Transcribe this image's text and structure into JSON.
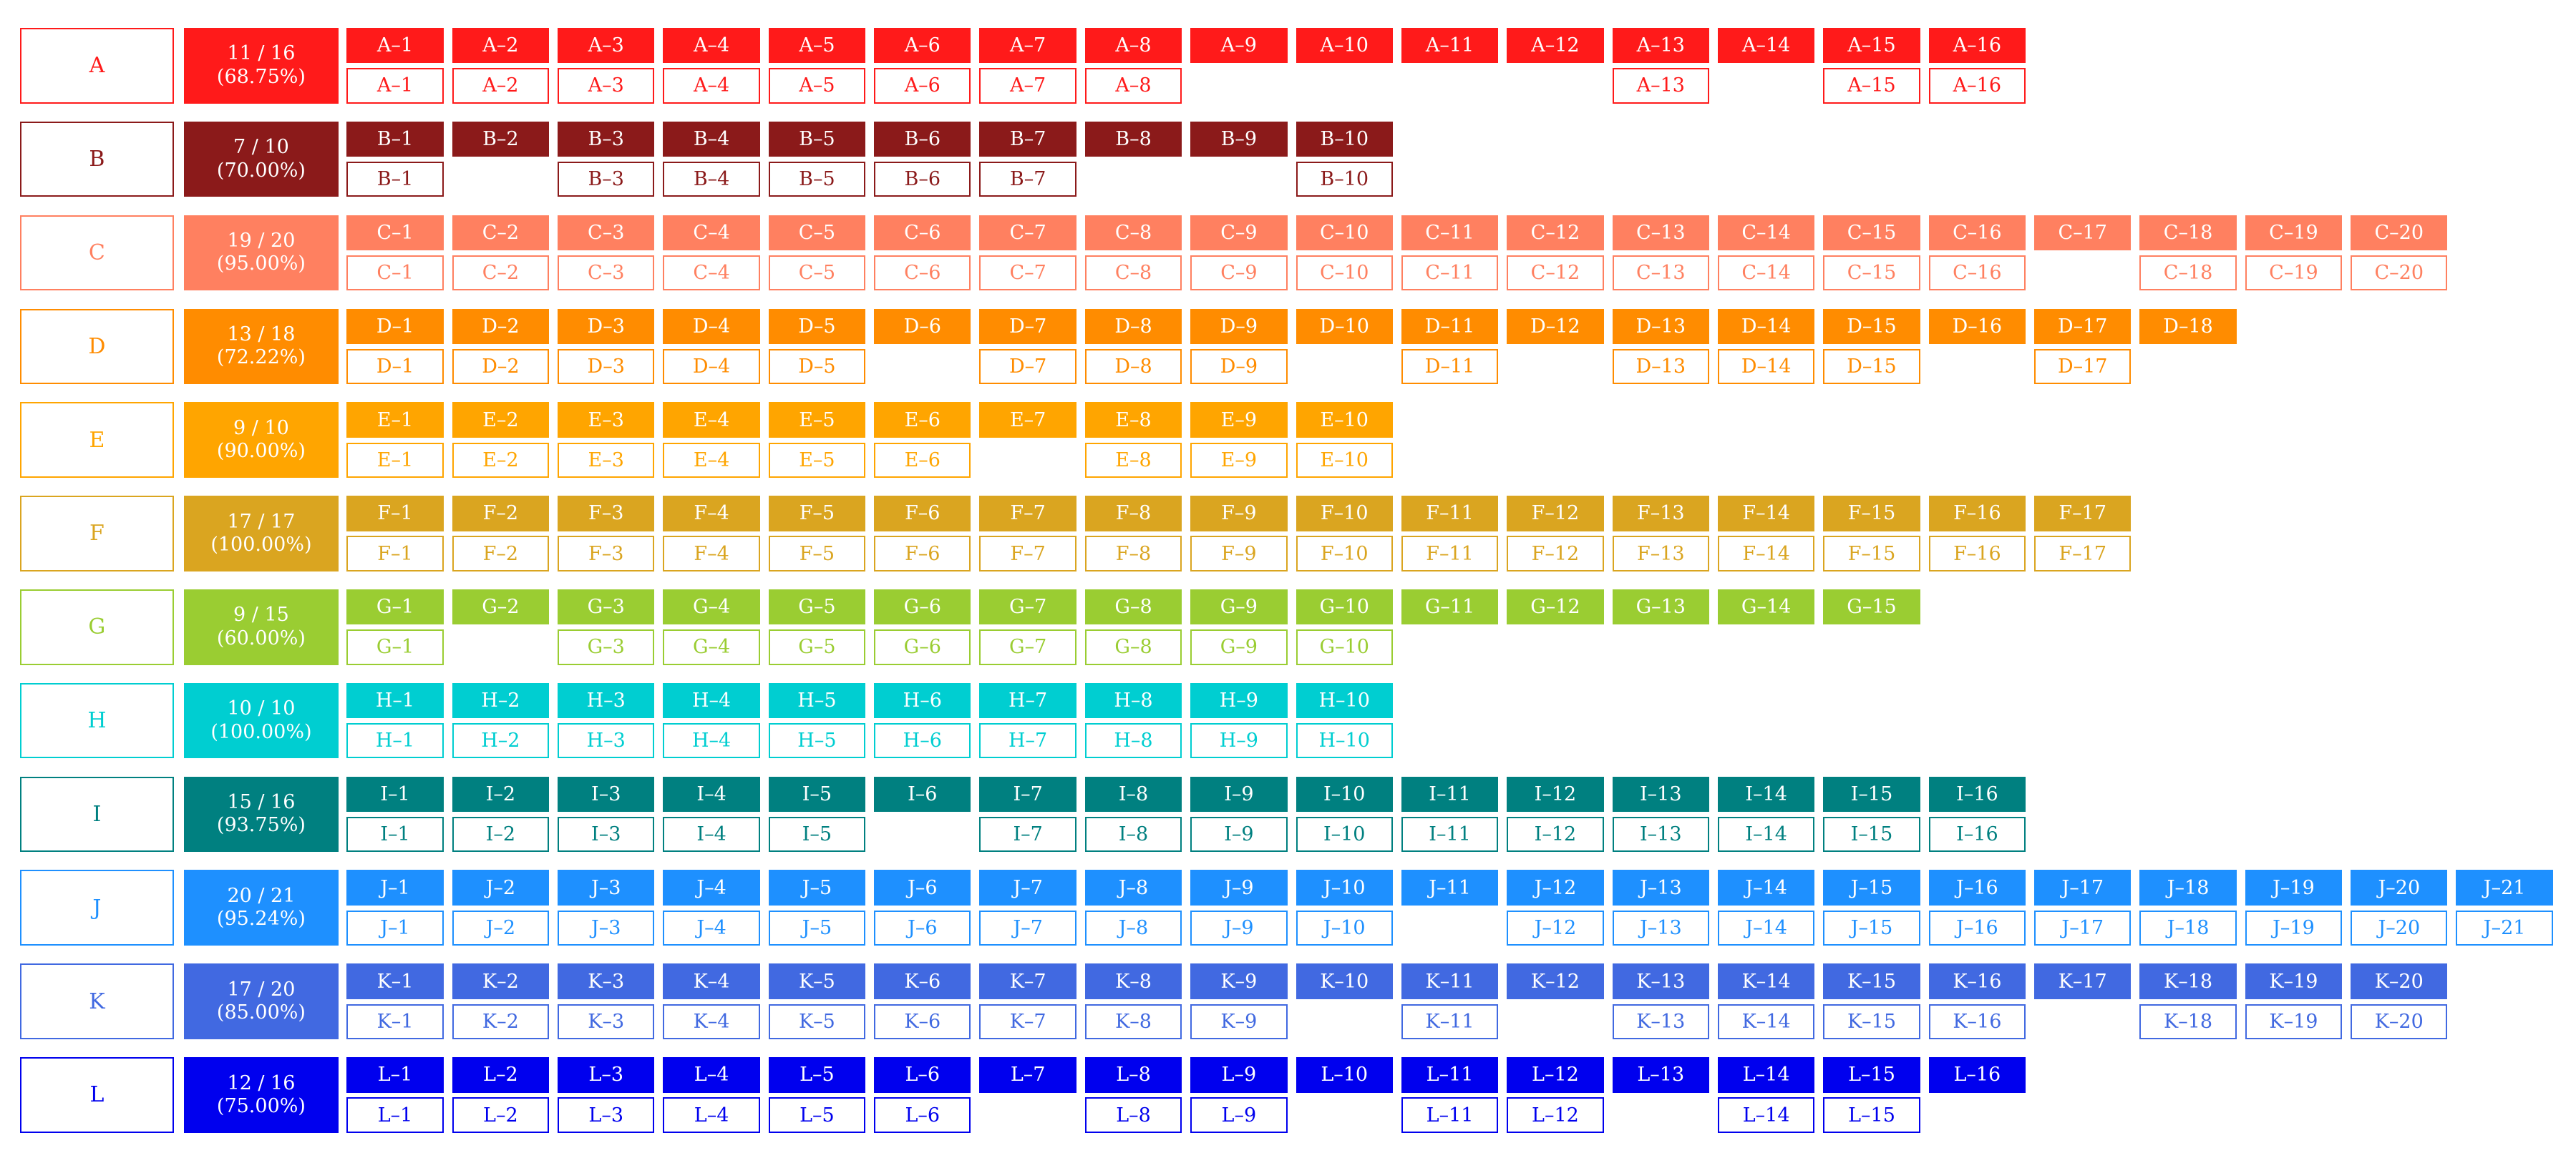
{
  "rows": [
    {
      "label": "A",
      "color": "#ff1a1a",
      "ratio": "11 / 16",
      "percent": "(68.75%)",
      "items": [
        "A–1",
        "A–2",
        "A–3",
        "A–4",
        "A–5",
        "A–6",
        "A–7",
        "A–8",
        "A–9",
        "A–10",
        "A–11",
        "A–12",
        "A–13",
        "A–14",
        "A–15",
        "A–16"
      ],
      "completed": [
        "A–1",
        "A–2",
        "A–3",
        "A–4",
        "A–5",
        "A–6",
        "A–7",
        "A–8",
        "A–13",
        "A–15",
        "A–16"
      ]
    },
    {
      "label": "B",
      "color": "#8b1a1a",
      "ratio": "7 / 10",
      "percent": "(70.00%)",
      "items": [
        "B–1",
        "B–2",
        "B–3",
        "B–4",
        "B–5",
        "B–6",
        "B–7",
        "B–8",
        "B–9",
        "B–10"
      ],
      "completed": [
        "B–1",
        "B–3",
        "B–4",
        "B–5",
        "B–6",
        "B–7",
        "B–10"
      ]
    },
    {
      "label": "C",
      "color": "#ff8060",
      "ratio": "19 / 20",
      "percent": "(95.00%)",
      "items": [
        "C–1",
        "C–2",
        "C–3",
        "C–4",
        "C–5",
        "C–6",
        "C–7",
        "C–8",
        "C–9",
        "C–10",
        "C–11",
        "C–12",
        "C–13",
        "C–14",
        "C–15",
        "C–16",
        "C–17",
        "C–18",
        "C–19",
        "C–20"
      ],
      "completed": [
        "C–1",
        "C–2",
        "C–3",
        "C–4",
        "C–5",
        "C–6",
        "C–7",
        "C–8",
        "C–9",
        "C–10",
        "C–11",
        "C–12",
        "C–13",
        "C–14",
        "C–15",
        "C–16",
        "C–18",
        "C–19",
        "C–20"
      ]
    },
    {
      "label": "D",
      "color": "#ff8c00",
      "ratio": "13 / 18",
      "percent": "(72.22%)",
      "items": [
        "D–1",
        "D–2",
        "D–3",
        "D–4",
        "D–5",
        "D–6",
        "D–7",
        "D–8",
        "D–9",
        "D–10",
        "D–11",
        "D–12",
        "D–13",
        "D–14",
        "D–15",
        "D–16",
        "D–17",
        "D–18"
      ],
      "completed": [
        "D–1",
        "D–2",
        "D–3",
        "D–4",
        "D–5",
        "D–7",
        "D–8",
        "D–9",
        "D–11",
        "D–13",
        "D–14",
        "D–15",
        "D–17"
      ]
    },
    {
      "label": "E",
      "color": "#ffa500",
      "ratio": "9 / 10",
      "percent": "(90.00%)",
      "items": [
        "E–1",
        "E–2",
        "E–3",
        "E–4",
        "E–5",
        "E–6",
        "E–7",
        "E–8",
        "E–9",
        "E–10"
      ],
      "completed": [
        "E–1",
        "E–2",
        "E–3",
        "E–4",
        "E–5",
        "E–6",
        "E–8",
        "E–9",
        "E–10"
      ]
    },
    {
      "label": "F",
      "color": "#daa520",
      "ratio": "17 / 17",
      "percent": "(100.00%)",
      "items": [
        "F–1",
        "F–2",
        "F–3",
        "F–4",
        "F–5",
        "F–6",
        "F–7",
        "F–8",
        "F–9",
        "F–10",
        "F–11",
        "F–12",
        "F–13",
        "F–14",
        "F–15",
        "F–16",
        "F–17"
      ],
      "completed": [
        "F–1",
        "F–2",
        "F–3",
        "F–4",
        "F–5",
        "F–6",
        "F–7",
        "F–8",
        "F–9",
        "F–10",
        "F–11",
        "F–12",
        "F–13",
        "F–14",
        "F–15",
        "F–16",
        "F–17"
      ]
    },
    {
      "label": "G",
      "color": "#9acd32",
      "ratio": "9 / 15",
      "percent": "(60.00%)",
      "items": [
        "G–1",
        "G–2",
        "G–3",
        "G–4",
        "G–5",
        "G–6",
        "G–7",
        "G–8",
        "G–9",
        "G–10",
        "G–11",
        "G–12",
        "G–13",
        "G–14",
        "G–15"
      ],
      "completed": [
        "G–1",
        "G–3",
        "G–4",
        "G–5",
        "G–6",
        "G–7",
        "G–8",
        "G–9",
        "G–10"
      ]
    },
    {
      "label": "H",
      "color": "#00ced1",
      "ratio": "10 / 10",
      "percent": "(100.00%)",
      "items": [
        "H–1",
        "H–2",
        "H–3",
        "H–4",
        "H–5",
        "H–6",
        "H–7",
        "H–8",
        "H–9",
        "H–10"
      ],
      "completed": [
        "H–1",
        "H–2",
        "H–3",
        "H–4",
        "H–5",
        "H–6",
        "H–7",
        "H–8",
        "H–9",
        "H–10"
      ]
    },
    {
      "label": "I",
      "color": "#008080",
      "ratio": "15 / 16",
      "percent": "(93.75%)",
      "items": [
        "I–1",
        "I–2",
        "I–3",
        "I–4",
        "I–5",
        "I–6",
        "I–7",
        "I–8",
        "I–9",
        "I–10",
        "I–11",
        "I–12",
        "I–13",
        "I–14",
        "I–15",
        "I–16"
      ],
      "completed": [
        "I–1",
        "I–2",
        "I–3",
        "I–4",
        "I–5",
        "I–7",
        "I–8",
        "I–9",
        "I–10",
        "I–11",
        "I–12",
        "I–13",
        "I–14",
        "I–15",
        "I–16"
      ]
    },
    {
      "label": "J",
      "color": "#1e90ff",
      "ratio": "20 / 21",
      "percent": "(95.24%)",
      "items": [
        "J–1",
        "J–2",
        "J–3",
        "J–4",
        "J–5",
        "J–6",
        "J–7",
        "J–8",
        "J–9",
        "J–10",
        "J–11",
        "J–12",
        "J–13",
        "J–14",
        "J–15",
        "J–16",
        "J–17",
        "J–18",
        "J–19",
        "J–20",
        "J–21"
      ],
      "completed": [
        "J–1",
        "J–2",
        "J–3",
        "J–4",
        "J–5",
        "J–6",
        "J–7",
        "J–8",
        "J–9",
        "J–10",
        "J–12",
        "J–13",
        "J–14",
        "J–15",
        "J–16",
        "J–17",
        "J–18",
        "J–19",
        "J–20",
        "J–21"
      ]
    },
    {
      "label": "K",
      "color": "#4169e1",
      "ratio": "17 / 20",
      "percent": "(85.00%)",
      "items": [
        "K–1",
        "K–2",
        "K–3",
        "K–4",
        "K–5",
        "K–6",
        "K–7",
        "K–8",
        "K–9",
        "K–10",
        "K–11",
        "K–12",
        "K–13",
        "K–14",
        "K–15",
        "K–16",
        "K–17",
        "K–18",
        "K–19",
        "K–20"
      ],
      "completed": [
        "K–1",
        "K–2",
        "K–3",
        "K–4",
        "K–5",
        "K–6",
        "K–7",
        "K–8",
        "K–9",
        "K–11",
        "K–13",
        "K–14",
        "K–15",
        "K–16",
        "K–18",
        "K–19",
        "K–20"
      ]
    },
    {
      "label": "L",
      "color": "#0000ee",
      "ratio": "12 / 16",
      "percent": "(75.00%)",
      "items": [
        "L–1",
        "L–2",
        "L–3",
        "L–4",
        "L–5",
        "L–6",
        "L–7",
        "L–8",
        "L–9",
        "L–10",
        "L–11",
        "L–12",
        "L–13",
        "L–14",
        "L–15",
        "L–16"
      ],
      "completed": [
        "L–1",
        "L–2",
        "L–3",
        "L–4",
        "L–5",
        "L–6",
        "L–8",
        "L–9",
        "L–11",
        "L–12",
        "L–14",
        "L–15"
      ]
    }
  ]
}
